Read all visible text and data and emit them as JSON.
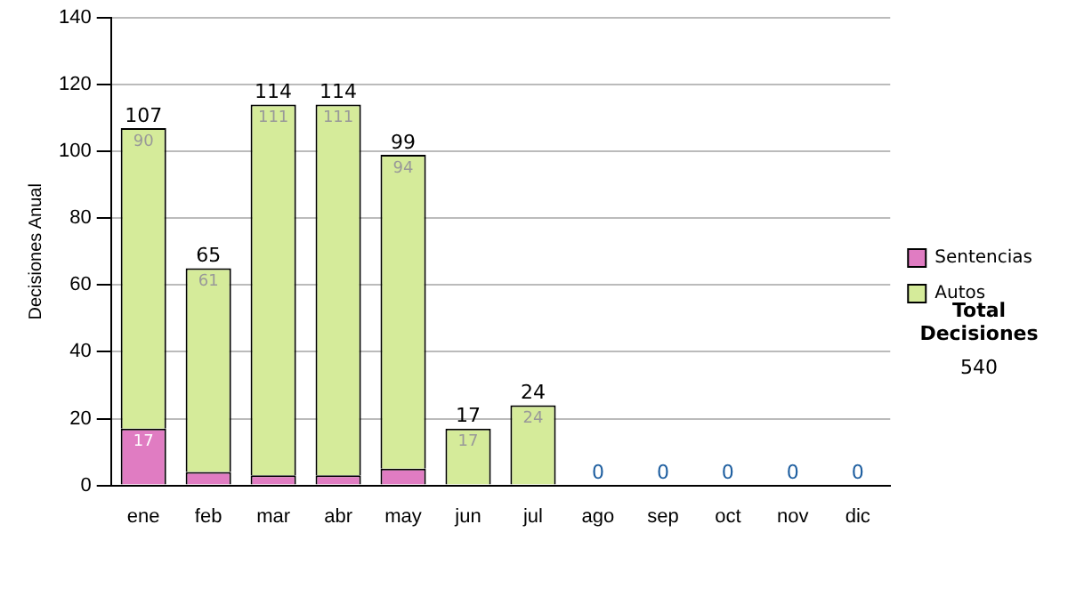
{
  "chart_data": {
    "type": "bar",
    "ylabel": "Decisiones Anual",
    "categories": [
      "ene",
      "feb",
      "mar",
      "abr",
      "may",
      "jun",
      "jul",
      "ago",
      "sep",
      "oct",
      "nov",
      "dic"
    ],
    "stacked": true,
    "series": [
      {
        "name": "Sentencias",
        "color": "#e07cc2",
        "values": [
          17,
          4,
          3,
          3,
          5,
          0,
          0,
          0,
          0,
          0,
          0,
          0
        ],
        "value_labels": [
          "17",
          null,
          null,
          null,
          null,
          null,
          null,
          null,
          null,
          null,
          null,
          null
        ]
      },
      {
        "name": "Autos",
        "color": "#d5eb9a",
        "values": [
          90,
          61,
          111,
          111,
          94,
          17,
          24,
          0,
          0,
          0,
          0,
          0
        ],
        "value_labels": [
          "90",
          "61",
          "111",
          "111",
          "94",
          "17",
          "24",
          null,
          null,
          null,
          null,
          null
        ]
      }
    ],
    "totals": [
      "107",
      "65",
      "114",
      "114",
      "99",
      "17",
      "24",
      "0",
      "0",
      "0",
      "0",
      "0"
    ],
    "ylim": [
      0,
      140
    ],
    "yticks": [
      0,
      20,
      40,
      60,
      80,
      100,
      120,
      140
    ],
    "grid": "y",
    "legend": "right",
    "annotations": [
      "Total Decisiones",
      "540"
    ]
  }
}
